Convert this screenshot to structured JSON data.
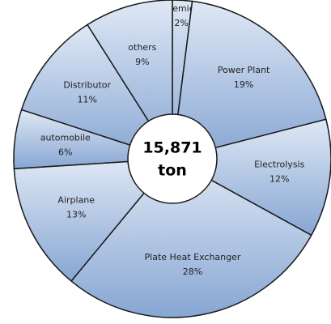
{
  "chart_data": {
    "type": "donut",
    "categories": [
      "Chemical",
      "Power Plant",
      "Electrolysis",
      "Plate Heat Exchanger",
      "Airplane",
      "automobile",
      "Distributor",
      "others"
    ],
    "values": [
      2,
      19,
      12,
      28,
      13,
      6,
      11,
      9
    ],
    "value_labels": [
      "2%",
      "19%",
      "12%",
      "28%",
      "13%",
      "6%",
      "11%",
      "9%"
    ],
    "center_text": [
      "15,871",
      "ton"
    ],
    "color": "#a9c0e2"
  }
}
